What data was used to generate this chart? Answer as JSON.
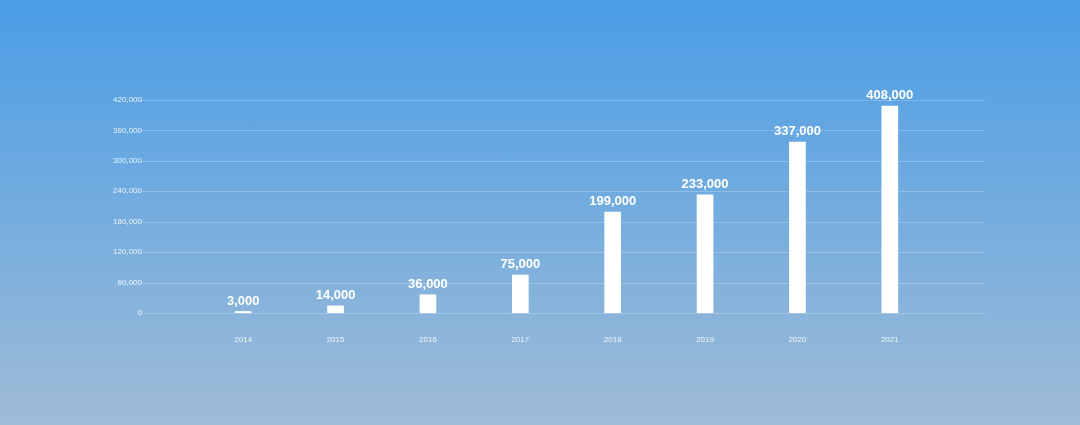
{
  "chart_data": {
    "type": "bar",
    "categories": [
      "2014",
      "2015",
      "2016",
      "2017",
      "2018",
      "2019",
      "2020",
      "2021"
    ],
    "values": [
      3000,
      14000,
      36000,
      75000,
      199000,
      233000,
      337000,
      408000
    ],
    "value_labels": [
      "3,000",
      "14,000",
      "36,000",
      "75,000",
      "199,000",
      "233,000",
      "337,000",
      "408,000"
    ],
    "color": "#ffffff",
    "ylim": [
      0,
      420000
    ],
    "yticks": [
      {
        "value": 0,
        "label": "0"
      },
      {
        "value": 60000,
        "label": "60,000"
      },
      {
        "value": 120000,
        "label": "120,000"
      },
      {
        "value": 180000,
        "label": "180,000"
      },
      {
        "value": 240000,
        "label": "240,000"
      },
      {
        "value": 300000,
        "label": "300,000"
      },
      {
        "value": 360000,
        "label": "360,000"
      },
      {
        "value": 420000,
        "label": "420,000"
      }
    ],
    "grid": "y",
    "legend": false
  }
}
